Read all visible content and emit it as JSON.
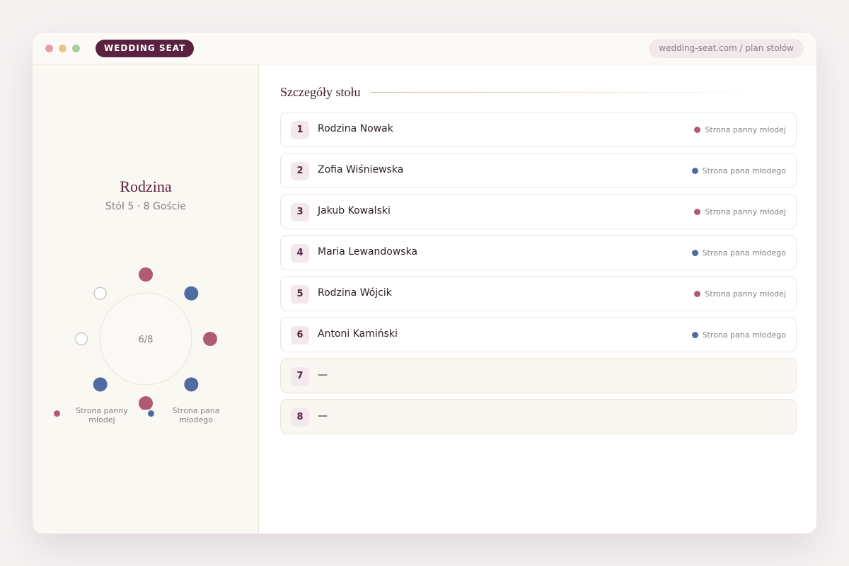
{
  "browser": {
    "brand": "WEDDING SEAT",
    "url": "wedding-seat.com / plan stołów"
  },
  "table_panel": {
    "name": "Rodzina",
    "subtitle": "Stół 5 · 8 Goście",
    "occupancy": "6/8",
    "legend": [
      {
        "label": "Strona panny młodej",
        "color": "#b05a74"
      },
      {
        "label": "Strona pana młodego",
        "color": "#506ba0"
      }
    ]
  },
  "details": {
    "heading": "Szczegóły stołu",
    "guests": [
      {
        "number": 1,
        "name": "Rodzina Nowak",
        "side": "Strona panny młodej"
      },
      {
        "number": 2,
        "name": "Zofia Wiśniewska",
        "side": "Strona pana młodego"
      },
      {
        "number": 3,
        "name": "Jakub Kowalski",
        "side": "Strona panny młodej"
      },
      {
        "number": 4,
        "name": "Maria Lewandowska",
        "side": "Strona pana młodego"
      },
      {
        "number": 5,
        "name": "Rodzina Wójcik",
        "side": "Strona panny młodej"
      },
      {
        "number": 6,
        "name": "Antoni Kamiński",
        "side": "Strona pana młodego"
      },
      {
        "number": 7,
        "name": "—"
      },
      {
        "number": 8,
        "name": "—"
      }
    ]
  }
}
